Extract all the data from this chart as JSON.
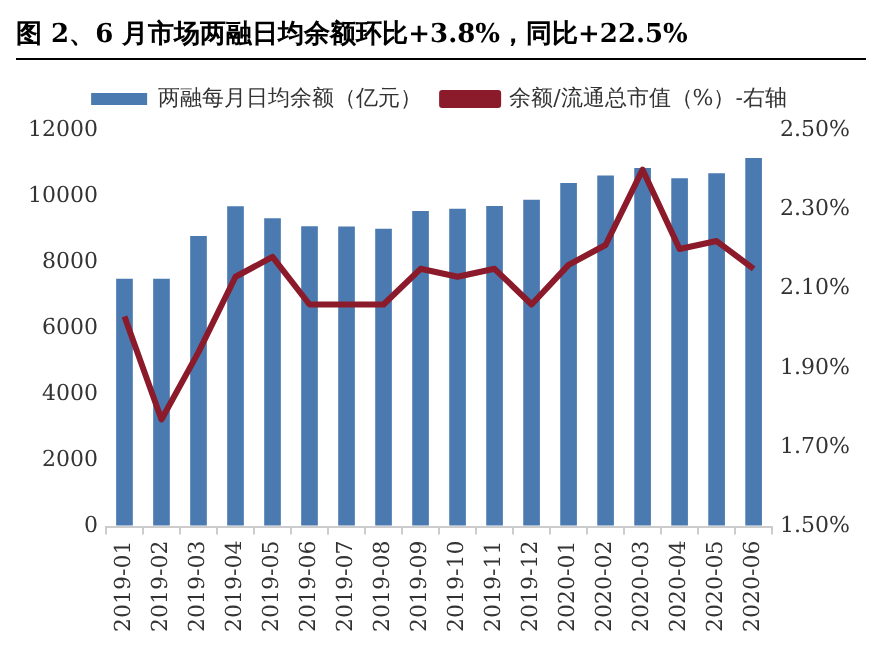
{
  "chart_data": {
    "type": "bar",
    "title": "图 2、6 月市场两融日均余额环比+3.8%，同比+22.5%",
    "categories": [
      "2019-01",
      "2019-02",
      "2019-03",
      "2019-04",
      "2019-05",
      "2019-06",
      "2019-07",
      "2019-08",
      "2019-09",
      "2019-10",
      "2019-11",
      "2019-12",
      "2020-01",
      "2020-02",
      "2020-03",
      "2020-04",
      "2020-05",
      "2020-06"
    ],
    "series": [
      {
        "name": "两融每月日均余额（亿元）",
        "color": "#4a7ab0",
        "values": [
          7500,
          7500,
          8790,
          9690,
          9330,
          9090,
          9080,
          9010,
          9550,
          9620,
          9700,
          9890,
          10400,
          10620,
          10850,
          10540,
          10690,
          11150
        ]
      },
      {
        "name": "余额/流通总市值（%）-右轴",
        "type": "line",
        "axis": "y2",
        "color": "#8b1a2b",
        "values": [
          2.03,
          1.77,
          1.94,
          2.13,
          2.18,
          2.06,
          2.06,
          2.06,
          2.15,
          2.13,
          2.15,
          2.06,
          2.16,
          2.21,
          2.4,
          2.2,
          2.22,
          2.15
        ]
      }
    ],
    "ylim": [
      0,
      12000
    ],
    "yticks": [
      0,
      2000,
      4000,
      6000,
      8000,
      10000,
      12000
    ],
    "y2lim": [
      1.5,
      2.5
    ],
    "y2ticks": [
      {
        "value": 1.5,
        "label": "1.50%"
      },
      {
        "value": 1.7,
        "label": "1.70%"
      },
      {
        "value": 1.9,
        "label": "1.90%"
      },
      {
        "value": 2.1,
        "label": "2.10%"
      },
      {
        "value": 2.3,
        "label": "2.30%"
      },
      {
        "value": 2.5,
        "label": "2.50%"
      }
    ],
    "grid": false,
    "legend": "top",
    "marker": "none",
    "line_style": "solid"
  }
}
